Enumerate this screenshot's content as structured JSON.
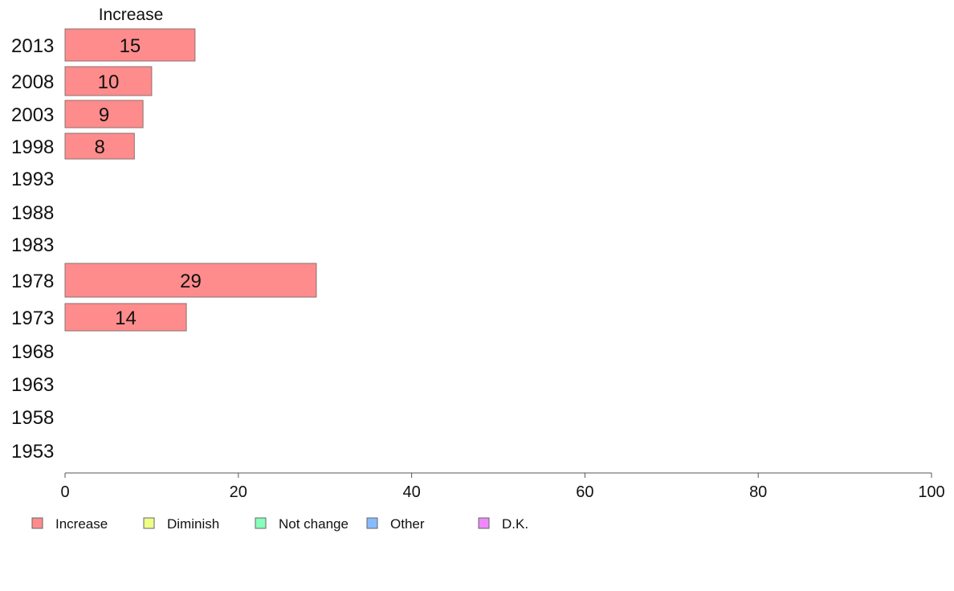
{
  "chart_data": {
    "type": "bar",
    "orientation": "horizontal",
    "stacked": true,
    "categories": [
      "2013",
      "2008",
      "2003",
      "1998",
      "1993",
      "1988",
      "1983",
      "1978",
      "1973",
      "1968",
      "1963",
      "1958",
      "1953"
    ],
    "series": [
      {
        "name": "Increase",
        "color": "#ff8c8c",
        "values": [
          15,
          10,
          9,
          8,
          null,
          null,
          null,
          29,
          14,
          null,
          null,
          null,
          null
        ]
      },
      {
        "name": "Diminish",
        "color": "#eeff88",
        "values": [
          null,
          null,
          null,
          null,
          null,
          null,
          null,
          null,
          null,
          null,
          null,
          null,
          null
        ]
      },
      {
        "name": "Not change",
        "color": "#88ffbb",
        "values": [
          null,
          null,
          null,
          null,
          null,
          null,
          null,
          null,
          null,
          null,
          null,
          null,
          null
        ]
      },
      {
        "name": "Other",
        "color": "#88bbff",
        "values": [
          null,
          null,
          null,
          null,
          null,
          null,
          null,
          null,
          null,
          null,
          null,
          null,
          null
        ]
      },
      {
        "name": "D.K.",
        "color": "#ee88ff",
        "values": [
          null,
          null,
          null,
          null,
          null,
          null,
          null,
          null,
          null,
          null,
          null,
          null,
          null
        ]
      }
    ],
    "segment_label": "Increase",
    "xlim": [
      0,
      100
    ],
    "xticks": [
      0,
      20,
      40,
      60,
      80,
      100
    ],
    "grid": false,
    "legend_position": "bottom"
  }
}
